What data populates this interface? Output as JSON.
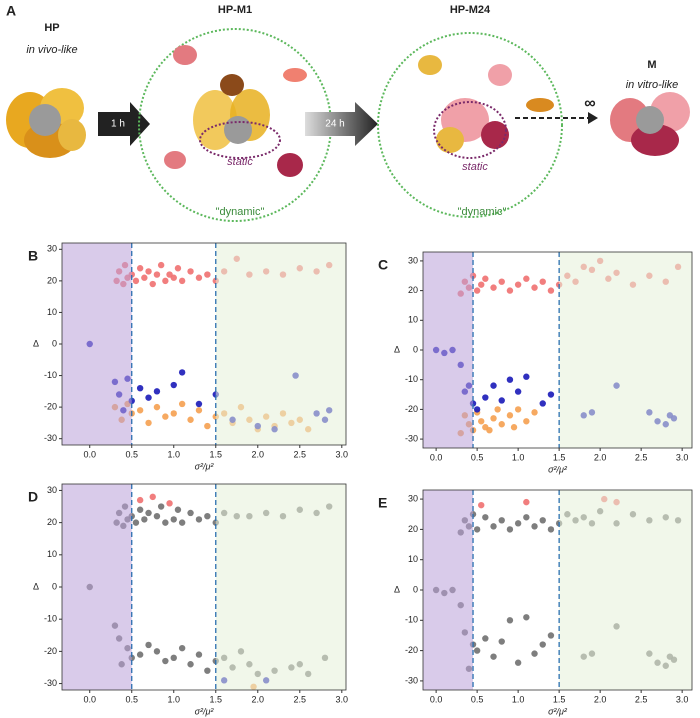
{
  "diagram": {
    "panel": "A",
    "hp": "HP",
    "hp_note": "in vivo-like",
    "step1": "1 h",
    "m1": "HP-M1",
    "m1_static": "static",
    "m1_dynamic": "\"dynamic\"",
    "step2": "24 h",
    "m24": "HP-M24",
    "m24_static": "static",
    "m24_dynamic": "\"dynamic\"",
    "infinity": "∞",
    "m": "M",
    "m_note": "in vitro-like"
  },
  "chart_data": [
    {
      "type": "scatter",
      "panel": "B",
      "xlabel": "σ²/μ²",
      "ylabel": "Δ",
      "xlim": [
        -0.33,
        3.05
      ],
      "ylim": [
        -32,
        32
      ],
      "xticks": [
        {
          "value": 0,
          "label": "0.0"
        },
        0.5,
        {
          "value": 1,
          "label": "1.0"
        },
        1.5,
        {
          "value": 2,
          "label": "2.0"
        },
        2.5,
        {
          "value": 3,
          "label": "3.0"
        }
      ],
      "yticks": [
        -30,
        -20,
        -10,
        0,
        10,
        20,
        30
      ],
      "regions": [
        {
          "to": 0.5,
          "color": "#b9a0d8"
        },
        {
          "from": 1.5,
          "color": "#e6f0d8"
        }
      ],
      "vlines": [
        0.5,
        1.5
      ],
      "vline_color": "#2a6fb0",
      "series": [
        {
          "color": "#f07070",
          "x": [
            0.32,
            0.35,
            0.4,
            0.42,
            0.45,
            0.5,
            0.55,
            0.6,
            0.65,
            0.7,
            0.75,
            0.8,
            0.85,
            0.9,
            0.95,
            1.0,
            1.05,
            1.1,
            1.2,
            1.3,
            1.4,
            1.5,
            1.6,
            1.75,
            1.9,
            2.1,
            2.3,
            2.5,
            2.7,
            2.85
          ],
          "values": [
            20,
            23,
            19,
            25,
            21,
            22,
            20,
            24,
            21,
            23,
            19,
            22,
            25,
            20,
            22,
            21,
            24,
            20,
            23,
            21,
            22,
            20,
            23,
            27,
            22,
            23,
            22,
            24,
            23,
            25
          ]
        },
        {
          "color": "#f5a050",
          "x": [
            0.3,
            0.38,
            0.45,
            0.5,
            0.6,
            0.7,
            0.8,
            0.9,
            1.0,
            1.1,
            1.2,
            1.3,
            1.4,
            1.5,
            1.6,
            1.7,
            1.8,
            1.9,
            2.0,
            2.1,
            2.2,
            2.3,
            2.4,
            2.5,
            2.6
          ],
          "values": [
            -20,
            -24,
            -19,
            -22,
            -21,
            -25,
            -20,
            -23,
            -22,
            -19,
            -24,
            -21,
            -26,
            -23,
            -22,
            -25,
            -20,
            -24,
            -27,
            -23,
            -26,
            -22,
            -25,
            -24,
            -27
          ]
        },
        {
          "color": "#1a1ab8",
          "x": [
            0,
            0.3,
            0.35,
            0.4,
            0.45,
            0.5,
            0.6,
            0.7,
            0.8,
            1.0,
            1.1,
            1.3,
            1.5,
            1.7,
            2.0,
            2.2,
            2.45,
            2.7,
            2.8,
            2.85
          ],
          "values": [
            0,
            -12,
            -16,
            -21,
            -11,
            -18,
            -14,
            -17,
            -15,
            -13,
            -9,
            -19,
            -16,
            -24,
            -26,
            -27,
            -10,
            -22,
            -24,
            -21
          ]
        }
      ]
    },
    {
      "type": "scatter",
      "panel": "C",
      "xlabel": "σ²/μ²",
      "ylabel": "Δ",
      "xlim": [
        -0.16,
        3.12
      ],
      "ylim": [
        -33,
        33
      ],
      "xticks": [
        {
          "value": 0,
          "label": "0.0"
        },
        0.5,
        {
          "value": 1,
          "label": "1.0"
        },
        1.5,
        {
          "value": 2,
          "label": "2.0"
        },
        2.5,
        {
          "value": 3,
          "label": "3.0"
        }
      ],
      "yticks": [
        -30,
        -20,
        -10,
        0,
        10,
        20,
        30
      ],
      "regions": [
        {
          "to": 0.45,
          "color": "#b9a0d8"
        },
        {
          "from": 1.5,
          "color": "#e6f0d8"
        }
      ],
      "vlines": [
        0.45,
        1.5
      ],
      "vline_color": "#2a6fb0",
      "series": [
        {
          "color": "#f07070",
          "x": [
            0.3,
            0.35,
            0.4,
            0.45,
            0.5,
            0.55,
            0.6,
            0.7,
            0.8,
            0.9,
            1.0,
            1.1,
            1.2,
            1.3,
            1.4,
            1.5,
            1.6,
            1.7,
            1.8,
            1.9,
            2.0,
            2.1,
            2.2,
            2.4,
            2.6,
            2.8,
            2.95
          ],
          "values": [
            19,
            23,
            21,
            25,
            20,
            22,
            24,
            21,
            23,
            20,
            22,
            24,
            21,
            23,
            20,
            22,
            25,
            23,
            28,
            27,
            30,
            24,
            26,
            22,
            25,
            23,
            28
          ]
        },
        {
          "color": "#f5a050",
          "x": [
            0.3,
            0.35,
            0.4,
            0.45,
            0.5,
            0.55,
            0.6,
            0.7,
            0.8,
            0.9,
            1.0,
            1.1,
            1.2,
            0.65,
            0.75,
            0.95
          ],
          "values": [
            -28,
            -22,
            -25,
            -27,
            -21,
            -24,
            -26,
            -23,
            -25,
            -22,
            -20,
            -24,
            -21,
            -27,
            -20,
            -26
          ]
        },
        {
          "color": "#1a1ab8",
          "x": [
            0,
            0.1,
            0.2,
            0.3,
            0.35,
            0.4,
            0.45,
            0.5,
            0.6,
            0.7,
            0.8,
            0.9,
            1.0,
            1.1,
            1.3,
            1.4,
            1.8,
            1.9,
            2.2,
            2.6,
            2.7,
            2.8,
            2.85,
            2.9
          ],
          "values": [
            0,
            -1,
            0,
            -5,
            -14,
            -12,
            -18,
            -20,
            -16,
            -12,
            -17,
            -10,
            -14,
            -9,
            -18,
            -15,
            -22,
            -21,
            -12,
            -21,
            -24,
            -25,
            -22,
            -23
          ]
        }
      ]
    },
    {
      "type": "scatter",
      "panel": "D",
      "xlabel": "σ²/μ²",
      "ylabel": "Δ",
      "xlim": [
        -0.33,
        3.05
      ],
      "ylim": [
        -32,
        32
      ],
      "xticks": [
        {
          "value": 0,
          "label": "0.0"
        },
        0.5,
        {
          "value": 1,
          "label": "1.0"
        },
        1.5,
        {
          "value": 2,
          "label": "2.0"
        },
        2.5,
        {
          "value": 3,
          "label": "3.0"
        }
      ],
      "yticks": [
        -30,
        -20,
        -10,
        0,
        10,
        20,
        30
      ],
      "regions": [
        {
          "to": 0.5,
          "color": "#b9a0d8"
        },
        {
          "from": 1.5,
          "color": "#e6f0d8"
        }
      ],
      "vlines": [
        0.5,
        1.5
      ],
      "vline_color": "#2a6fb0",
      "series": [
        {
          "color": "#707070",
          "x": [
            0.32,
            0.35,
            0.4,
            0.42,
            0.45,
            0.5,
            0.55,
            0.6,
            0.65,
            0.7,
            0.8,
            0.85,
            0.9,
            1.0,
            1.05,
            1.1,
            1.2,
            1.3,
            1.4,
            1.5,
            1.6,
            1.75,
            1.9,
            2.1,
            2.3,
            2.5,
            2.7,
            2.85
          ],
          "values": [
            20,
            23,
            19,
            25,
            21,
            22,
            20,
            24,
            21,
            23,
            22,
            25,
            20,
            21,
            24,
            20,
            23,
            21,
            22,
            20,
            23,
            22,
            22,
            23,
            22,
            24,
            23,
            25
          ]
        },
        {
          "color": "#707070",
          "x": [
            0,
            0.3,
            0.35,
            0.38,
            0.45,
            0.5,
            0.6,
            0.7,
            0.8,
            0.9,
            1.0,
            1.1,
            1.2,
            1.3,
            1.4,
            1.5,
            1.6,
            1.7,
            1.8,
            1.9,
            2.0,
            2.2,
            2.4,
            2.5,
            2.6,
            2.8
          ],
          "values": [
            0,
            -12,
            -16,
            -24,
            -19,
            -22,
            -21,
            -18,
            -20,
            -23,
            -22,
            -19,
            -24,
            -21,
            -26,
            -23,
            -22,
            -25,
            -20,
            -24,
            -27,
            -26,
            -25,
            -24,
            -27,
            -22
          ]
        },
        {
          "color": "#f07070",
          "x": [
            0.6,
            0.75,
            0.95
          ],
          "values": [
            27,
            28,
            26
          ]
        },
        {
          "color": "#f5a050",
          "x": [
            1.95
          ],
          "values": [
            -31
          ]
        },
        {
          "color": "#1a1ab8",
          "x": [
            1.6,
            2.1
          ],
          "values": [
            -29,
            -29
          ]
        }
      ]
    },
    {
      "type": "scatter",
      "panel": "E",
      "xlabel": "σ²/μ²",
      "ylabel": "Δ",
      "xlim": [
        -0.16,
        3.12
      ],
      "ylim": [
        -33,
        33
      ],
      "xticks": [
        {
          "value": 0,
          "label": "0.0"
        },
        0.5,
        {
          "value": 1,
          "label": "1.0"
        },
        1.5,
        {
          "value": 2,
          "label": "2.0"
        },
        2.5,
        {
          "value": 3,
          "label": "3.0"
        }
      ],
      "yticks": [
        -30,
        -20,
        -10,
        0,
        10,
        20,
        30
      ],
      "regions": [
        {
          "to": 0.45,
          "color": "#b9a0d8"
        },
        {
          "from": 1.5,
          "color": "#e6f0d8"
        }
      ],
      "vlines": [
        0.45,
        1.5
      ],
      "vline_color": "#2a6fb0",
      "series": [
        {
          "color": "#707070",
          "x": [
            0.3,
            0.35,
            0.4,
            0.45,
            0.5,
            0.6,
            0.7,
            0.8,
            0.9,
            1.0,
            1.1,
            1.2,
            1.3,
            1.4,
            1.5,
            1.6,
            1.7,
            1.8,
            1.9,
            2.0,
            2.2,
            2.4,
            2.6,
            2.8,
            2.95
          ],
          "values": [
            19,
            23,
            21,
            25,
            20,
            24,
            21,
            23,
            20,
            22,
            24,
            21,
            23,
            20,
            22,
            25,
            23,
            24,
            22,
            26,
            22,
            25,
            23,
            24,
            23
          ]
        },
        {
          "color": "#707070",
          "x": [
            0,
            0.1,
            0.2,
            0.3,
            0.35,
            0.4,
            0.45,
            0.5,
            0.6,
            0.7,
            0.8,
            0.9,
            1.0,
            1.1,
            1.2,
            1.3,
            1.4,
            1.8,
            1.9,
            2.2,
            2.6,
            2.7,
            2.8,
            2.85,
            2.9
          ],
          "values": [
            0,
            -1,
            0,
            -5,
            -14,
            -26,
            -18,
            -20,
            -16,
            -22,
            -17,
            -10,
            -24,
            -9,
            -21,
            -18,
            -15,
            -22,
            -21,
            -12,
            -21,
            -24,
            -25,
            -22,
            -23
          ]
        },
        {
          "color": "#f07070",
          "x": [
            0.55,
            1.1,
            2.05,
            2.2
          ],
          "values": [
            28,
            29,
            30,
            29
          ]
        }
      ]
    }
  ]
}
